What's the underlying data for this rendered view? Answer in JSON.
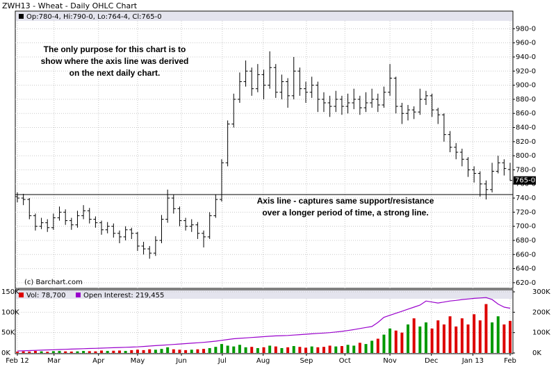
{
  "chart_data": [
    {
      "type": "ohlc",
      "title": "ZWH13 - Wheat - Daily OHLC Chart",
      "info": "Op:780-4, Hi:790-0, Lo:764-4, Cl:765-0",
      "annotations": [
        "The only purpose for this chart is to",
        "show where the axis line was derived",
        "on the next daily chart.",
        "Axis line - captures same support/resistance",
        "over a longer period of time, a strong line."
      ],
      "credit": "(c) Barchart.com",
      "last_label": "765-0",
      "reference_line": 745,
      "color": "#000000",
      "grid": true,
      "xlim": [
        0,
        82
      ],
      "ylim": [
        612,
        1005
      ],
      "yticks": [
        {
          "value": 620,
          "label": "620-0"
        },
        {
          "value": 640,
          "label": "640-0"
        },
        {
          "value": 660,
          "label": "660-0"
        },
        {
          "value": 680,
          "label": "680-0"
        },
        {
          "value": 700,
          "label": "700-0"
        },
        {
          "value": 720,
          "label": "720-0"
        },
        {
          "value": 740,
          "label": "740-0"
        },
        {
          "value": 760,
          "label": "760-0"
        },
        {
          "value": 780,
          "label": "780-0"
        },
        {
          "value": 800,
          "label": "800-0"
        },
        {
          "value": 820,
          "label": "820-0"
        },
        {
          "value": 840,
          "label": "840-0"
        },
        {
          "value": 860,
          "label": "860-0"
        },
        {
          "value": 880,
          "label": "880-0"
        },
        {
          "value": 900,
          "label": "900-0"
        },
        {
          "value": 920,
          "label": "920-0"
        },
        {
          "value": 940,
          "label": "940-0"
        },
        {
          "value": 960,
          "label": "960-0"
        },
        {
          "value": 980,
          "label": "980-0"
        }
      ],
      "open": [
        742,
        740,
        738,
        715,
        700,
        705,
        698,
        712,
        720,
        708,
        702,
        715,
        722,
        710,
        705,
        695,
        700,
        690,
        685,
        695,
        690,
        672,
        668,
        662,
        680,
        710,
        740,
        725,
        708,
        700,
        702,
        690,
        685,
        715,
        738,
        790,
        845,
        880,
        905,
        920,
        895,
        915,
        900,
        925,
        890,
        905,
        885,
        920,
        895,
        890,
        900,
        880,
        875,
        870,
        880,
        870,
        875,
        880,
        868,
        875,
        880,
        872,
        890,
        910,
        870,
        860,
        865,
        862,
        880,
        885,
        865,
        858,
        830,
        812,
        805,
        795,
        780,
        775,
        760,
        752,
        778,
        790,
        780.5
      ],
      "high": [
        748,
        746,
        740,
        718,
        712,
        710,
        718,
        728,
        724,
        712,
        722,
        730,
        726,
        714,
        708,
        706,
        704,
        694,
        700,
        698,
        692,
        678,
        672,
        686,
        716,
        752,
        745,
        728,
        712,
        710,
        706,
        694,
        720,
        745,
        795,
        850,
        888,
        918,
        935,
        925,
        930,
        922,
        948,
        930,
        915,
        910,
        940,
        925,
        905,
        912,
        905,
        890,
        885,
        892,
        885,
        888,
        895,
        885,
        890,
        895,
        888,
        898,
        930,
        912,
        875,
        872,
        870,
        895,
        892,
        888,
        868,
        860,
        835,
        818,
        810,
        798,
        785,
        778,
        765,
        790,
        800,
        795,
        790
      ],
      "low": [
        734,
        730,
        710,
        694,
        696,
        692,
        695,
        708,
        702,
        695,
        698,
        710,
        704,
        698,
        688,
        690,
        684,
        676,
        680,
        682,
        665,
        660,
        654,
        658,
        676,
        705,
        718,
        700,
        694,
        692,
        682,
        670,
        682,
        712,
        735,
        785,
        840,
        875,
        898,
        885,
        890,
        880,
        895,
        882,
        880,
        868,
        880,
        885,
        875,
        882,
        862,
        862,
        855,
        862,
        858,
        860,
        866,
        858,
        862,
        868,
        862,
        868,
        885,
        860,
        845,
        850,
        852,
        858,
        872,
        855,
        845,
        820,
        805,
        795,
        785,
        770,
        762,
        742,
        738,
        748,
        775,
        772,
        764.5
      ],
      "close": [
        740,
        738,
        715,
        700,
        705,
        698,
        712,
        720,
        708,
        702,
        715,
        722,
        710,
        705,
        695,
        700,
        690,
        685,
        695,
        690,
        672,
        668,
        662,
        680,
        710,
        740,
        725,
        708,
        700,
        702,
        690,
        685,
        715,
        738,
        790,
        845,
        880,
        905,
        920,
        895,
        915,
        900,
        925,
        890,
        905,
        885,
        920,
        895,
        890,
        900,
        880,
        875,
        870,
        880,
        870,
        875,
        880,
        868,
        875,
        880,
        872,
        890,
        910,
        870,
        860,
        865,
        862,
        880,
        885,
        865,
        858,
        830,
        812,
        805,
        795,
        780,
        775,
        760,
        752,
        778,
        790,
        782,
        765
      ]
    },
    {
      "type": "bar",
      "xlim": [
        0,
        82
      ],
      "grid": true,
      "xticks": [
        {
          "value": 0,
          "label": "Feb 12"
        },
        {
          "value": 6.1,
          "label": "Mar"
        },
        {
          "value": 13.5,
          "label": "Apr"
        },
        {
          "value": 20,
          "label": "May"
        },
        {
          "value": 27.3,
          "label": "Jun"
        },
        {
          "value": 34.1,
          "label": "Jul"
        },
        {
          "value": 40.9,
          "label": "Aug"
        },
        {
          "value": 48.1,
          "label": "Sep"
        },
        {
          "value": 54.5,
          "label": "Oct"
        },
        {
          "value": 62,
          "label": "Nov"
        },
        {
          "value": 68.9,
          "label": "Dec"
        },
        {
          "value": 75.8,
          "label": "Jan 13"
        },
        {
          "value": 82,
          "label": "Feb"
        }
      ],
      "ylim": [
        0,
        150000
      ],
      "yticks": [
        {
          "value": 0,
          "label": "0K"
        },
        {
          "value": 50000,
          "label": "50K"
        },
        {
          "value": 100000,
          "label": "100K"
        },
        {
          "value": 150000,
          "label": "150K"
        }
      ],
      "y2lim": [
        0,
        300000
      ],
      "y2ticks": [
        {
          "value": 0,
          "label": "0K"
        },
        {
          "value": 100000,
          "label": "100K"
        },
        {
          "value": 200000,
          "label": "200K"
        },
        {
          "value": 300000,
          "label": "300K"
        }
      ],
      "series": [
        {
          "name": "Vol: 78,700",
          "color": "#dd0000",
          "up_color": "#009900",
          "values": [
            3000,
            4000,
            3500,
            5000,
            4000,
            3000,
            4500,
            5000,
            4000,
            3500,
            4000,
            5000,
            4500,
            4000,
            6000,
            5000,
            5500,
            6000,
            5000,
            7000,
            8000,
            7000,
            9000,
            8000,
            10000,
            14000,
            9000,
            8000,
            7000,
            8000,
            9000,
            10000,
            12000,
            15000,
            22000,
            18000,
            16000,
            20000,
            14000,
            15000,
            12000,
            14000,
            18000,
            16000,
            12000,
            14000,
            17000,
            15000,
            13000,
            16000,
            14000,
            15000,
            18000,
            16000,
            17000,
            20000,
            18000,
            25000,
            22000,
            30000,
            35000,
            45000,
            60000,
            55000,
            50000,
            70000,
            85000,
            65000,
            75000,
            60000,
            80000,
            70000,
            90000,
            65000,
            85000,
            70000,
            95000,
            80000,
            120000,
            75000,
            90000,
            70000,
            78700
          ]
        },
        {
          "name": "Open Interest: 219,455",
          "color": "#9900cc",
          "axis": "y2",
          "values": [
            10000,
            11000,
            12000,
            13000,
            14000,
            15000,
            16000,
            17000,
            18000,
            19000,
            20000,
            21000,
            22000,
            23000,
            24000,
            25000,
            26000,
            27000,
            28000,
            29000,
            30000,
            32000,
            34000,
            36000,
            38000,
            40000,
            42000,
            44000,
            46000,
            48000,
            50000,
            52000,
            55000,
            58000,
            62000,
            66000,
            70000,
            72000,
            74000,
            76000,
            78000,
            80000,
            82000,
            84000,
            85000,
            86000,
            88000,
            90000,
            92000,
            94000,
            96000,
            98000,
            100000,
            103000,
            106000,
            110000,
            115000,
            120000,
            125000,
            130000,
            150000,
            175000,
            185000,
            195000,
            205000,
            215000,
            225000,
            235000,
            255000,
            250000,
            245000,
            250000,
            255000,
            258000,
            262000,
            265000,
            268000,
            270000,
            272000,
            262000,
            240000,
            225000,
            219455
          ]
        }
      ]
    }
  ]
}
